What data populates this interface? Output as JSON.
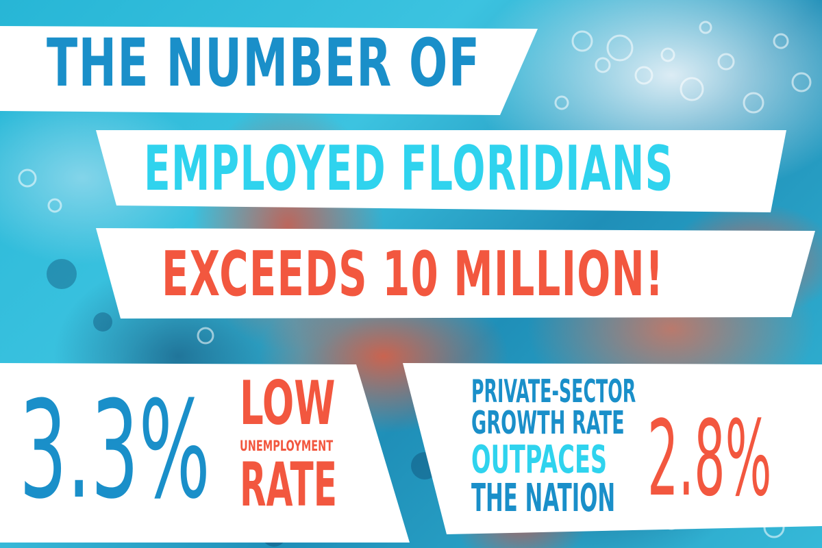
{
  "headline": {
    "line1": "THE NUMBER OF",
    "line2": "EMPLOYED FLORIDIANS",
    "line3": "EXCEEDS 10 MILLION!"
  },
  "unemployment": {
    "value": "3.3%",
    "line1": "LOW",
    "line2": "UNEMPLOYMENT",
    "line3": "RATE"
  },
  "growth": {
    "line1": "PRIVATE-SECTOR",
    "line2": "GROWTH RATE",
    "line3": "OUTPACES",
    "line4": "THE NATION",
    "value": "2.8%"
  },
  "colors": {
    "blue": "#1a8fc9",
    "cyan": "#2fd3ee",
    "coral": "#f2573f",
    "panel": "#ffffff"
  }
}
